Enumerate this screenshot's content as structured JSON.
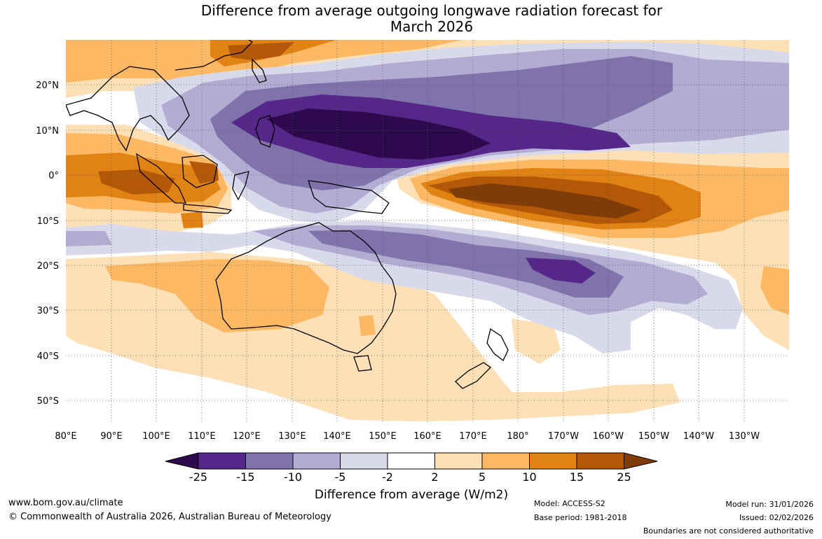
{
  "title": {
    "line1": "Difference from average outgoing longwave radiation forecast for",
    "line2": "March 2026"
  },
  "map": {
    "lat_labels": [
      "20°N",
      "10°N",
      "0°",
      "10°S",
      "20°S",
      "30°S",
      "40°S",
      "50°S"
    ],
    "lon_labels": [
      "80°E",
      "90°E",
      "100°E",
      "110°E",
      "120°E",
      "130°E",
      "140°E",
      "150°E",
      "160°E",
      "170°E",
      "180°",
      "170°W",
      "160°W",
      "150°W",
      "140°W",
      "130°W"
    ]
  },
  "legend": {
    "ticks": [
      "-25",
      "-15",
      "-10",
      "-5",
      "-2",
      "2",
      "5",
      "10",
      "15",
      "25"
    ],
    "colors": {
      "lt_m25": "#2d0a4e",
      "m25_m15": "#542788",
      "m15_m10": "#8073ac",
      "m10_m5": "#b2abd2",
      "m5_m2": "#d8daeb",
      "m2_2": "#ffffff",
      "p2_5": "#fee0b6",
      "p5_10": "#fdb863",
      "p10_15": "#e08214",
      "p15_25": "#b35806",
      "gt_25": "#7f3b08"
    },
    "title": "Difference from average (W/m2)"
  },
  "footer": {
    "website": "www.bom.gov.au/climate",
    "copyright": "© Commonwealth of Australia 2026, Australian Bureau of Meteorology",
    "model": "Model: ACCESS-S2",
    "base_period": "Base period: 1981-2018",
    "model_run": "Model run: 31/01/2026",
    "issued": "Issued: 02/02/2026",
    "disclaimer": "Boundaries are not considered authoritative"
  }
}
